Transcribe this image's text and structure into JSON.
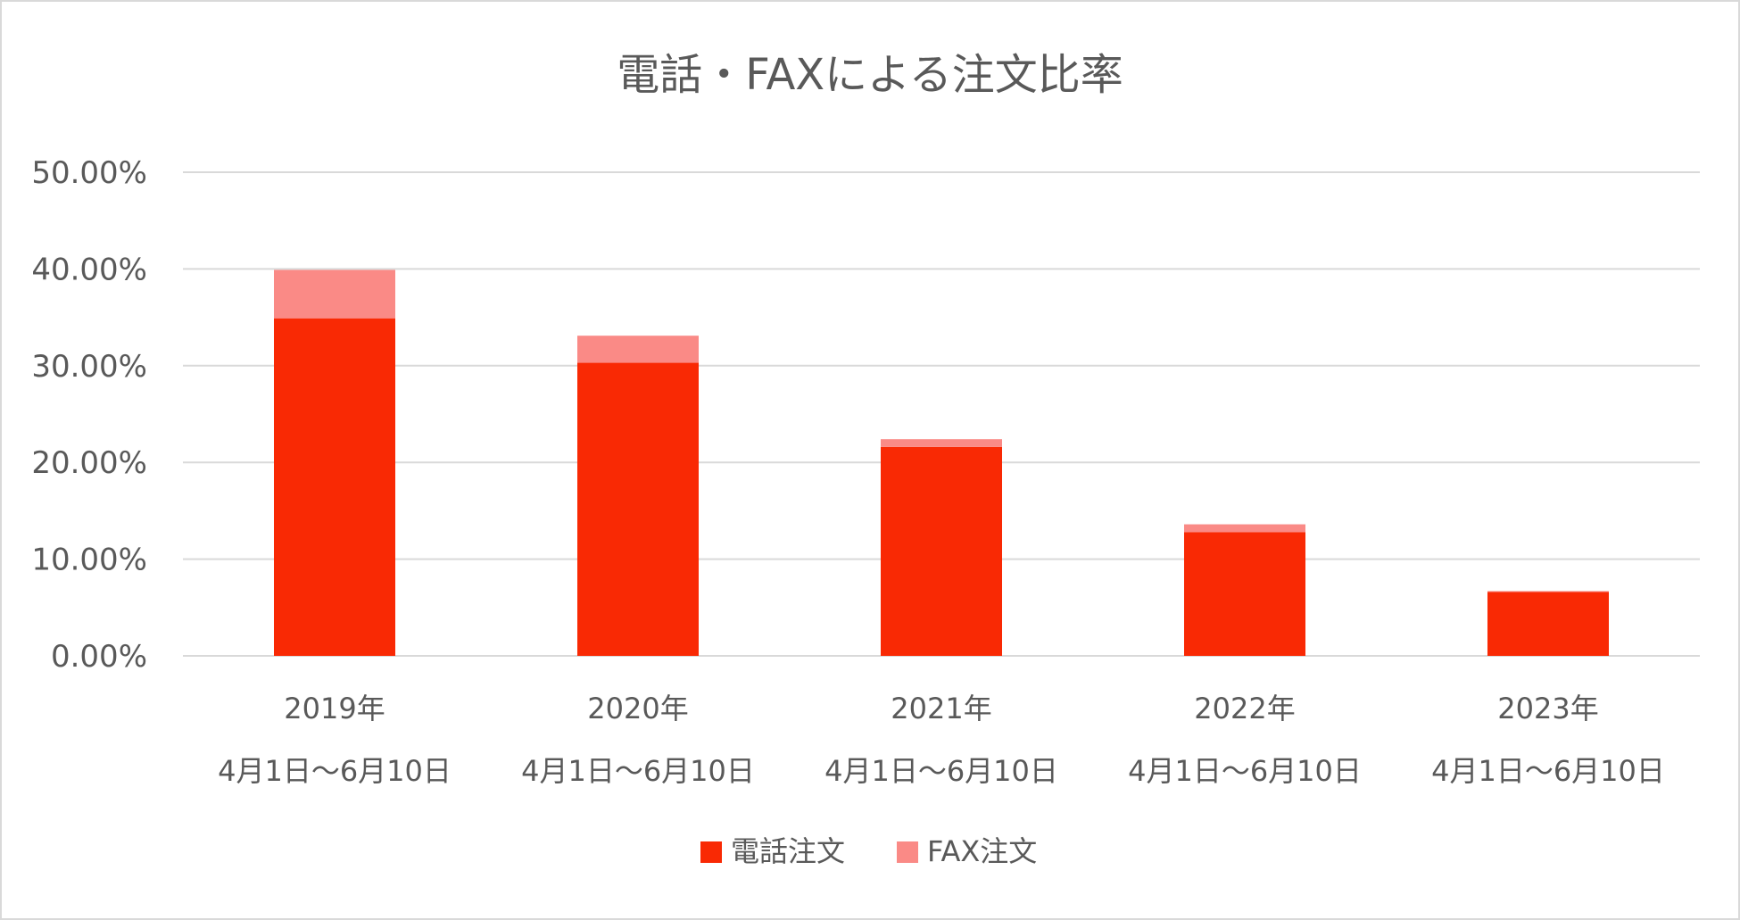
{
  "chart_data": {
    "type": "bar",
    "stacked": true,
    "title": "電話・FAXによる注文比率",
    "categories": [
      [
        "2019年",
        "4月1日～6月10日"
      ],
      [
        "2020年",
        "4月1日～6月10日"
      ],
      [
        "2021年",
        "4月1日～6月10日"
      ],
      [
        "2022年",
        "4月1日～6月10日"
      ],
      [
        "2023年",
        "4月1日～6月10日"
      ]
    ],
    "series": [
      {
        "name": "電話注文",
        "color": "#f92904",
        "values": [
          34.9,
          30.3,
          21.6,
          12.8,
          6.6
        ]
      },
      {
        "name": "FAX注文",
        "color": "#fa8a86",
        "values": [
          5.0,
          2.8,
          0.8,
          0.8,
          0.1
        ]
      }
    ],
    "ylim": [
      0,
      50
    ],
    "yticks": [
      0,
      10,
      20,
      30,
      40,
      50
    ],
    "ytick_labels": [
      "0.00%",
      "10.00%",
      "20.00%",
      "30.00%",
      "40.00%",
      "50.00%"
    ],
    "grid": true,
    "legend": "bottom-center"
  }
}
